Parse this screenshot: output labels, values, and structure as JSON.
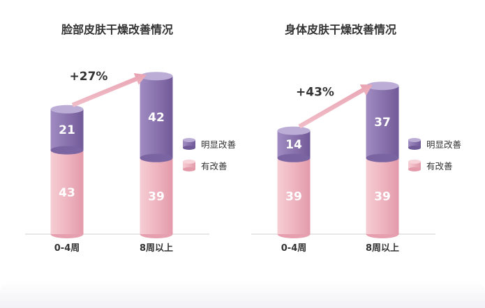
{
  "chart_data": [
    {
      "type": "bar",
      "stacked": true,
      "title": "脸部皮肤干燥改善情况",
      "categories": [
        "0-4周",
        "8周以上"
      ],
      "series": [
        {
          "name": "有改善",
          "values": [
            43,
            39
          ]
        },
        {
          "name": "明显改善",
          "values": [
            21,
            42
          ]
        }
      ],
      "annotation": "+27%",
      "legend": [
        "明显改善",
        "有改善"
      ],
      "legend_position": "right",
      "colors": {
        "明显改善": "#8a74ad",
        "有改善": "#eeb2be"
      }
    },
    {
      "type": "bar",
      "stacked": true,
      "title": "身体皮肤干燥改善情况",
      "categories": [
        "0-4周",
        "8周以上"
      ],
      "series": [
        {
          "name": "有改善",
          "values": [
            39,
            39
          ]
        },
        {
          "name": "明显改善",
          "values": [
            14,
            37
          ]
        }
      ],
      "annotation": "+43%",
      "legend": [
        "明显改善",
        "有改善"
      ],
      "legend_position": "right",
      "colors": {
        "明显改善": "#8a74ad",
        "有改善": "#eeb2be"
      }
    }
  ]
}
